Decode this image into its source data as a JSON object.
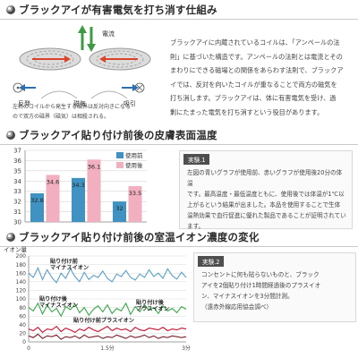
{
  "section1": {
    "title": "ブラックアイが有害電気を打ち消す仕組み",
    "diagram": {
      "current_label": "電流",
      "repel_label": "反発",
      "magnetism_label": "磁気",
      "attract_label": "吸引",
      "caption_line1": "左右のコイルから発生する磁界は反対向きになる",
      "caption_line2": "ので双方の磁界（磁気）は相殺される。"
    },
    "text_lines": [
      "ブラックアイに内蔵されているコイルは、「アンペールの法",
      "則」に基づいた構造です。アンペールの法則とは電流とその",
      "まわりにできる磁場との関係をあらわす法則で、ブラックア",
      "イでは、反対を向いたコイルが重なることで両方の磁気を",
      "打ち消します。ブラックアイは、体に有害電気を受け、過",
      "剰にたまった電気を打ち消すという役目があります。"
    ]
  },
  "section2": {
    "title": "ブラックアイ貼り付け前後の皮膚表面温度",
    "example_badge": "実験.1",
    "example_lines": [
      "左図の青いグラフが使用前、赤いグラフが使用後20分の体温",
      "です。最高温度・最低温度ともに、使用後では体温が1℃以",
      "上がるという結果が出ました。本品を使用することで生体",
      "温熱効果で血行促進に優れた製品であることが証明されてい",
      "ます。"
    ]
  },
  "section3": {
    "title": "ブラックアイ貼り付け前後の室温イオン濃度の変化",
    "example_badge": "実験.2",
    "example_lines": [
      "コンセントに何も貼らないものと、ブラック",
      "アイを2個貼り付け1時間経過後のプラスイオ",
      "ン、マイナスイオンを3分間計測。",
      "（遠赤外線応用協会調べ）"
    ]
  },
  "colors": {
    "before": "#3f92c2",
    "after": "#f2afc0",
    "plus_ion_line": "#c8102e",
    "minus_ion_after": "#3aa84a",
    "minus_ion_before": "#5aa0c8"
  },
  "chart_data": [
    {
      "type": "bar",
      "title": "",
      "categories": [
        "最高温度",
        "最低温度"
      ],
      "series": [
        {
          "name": "使用前",
          "values": [
            32.8,
            34.3
          ]
        },
        {
          "name": "使用後",
          "values": [
            34.6,
            36.1
          ]
        }
      ],
      "extra_bars": [
        {
          "name": "使用前",
          "value": 32
        },
        {
          "name": "使用後",
          "value": 33.5
        }
      ],
      "y_ticks": [
        30,
        31,
        32,
        33,
        34,
        35,
        36,
        37
      ],
      "ylim": [
        30,
        37
      ],
      "grid": true,
      "legend": "top-right"
    },
    {
      "type": "line",
      "y_axis_title": "イオン量",
      "y_ticks": [
        0,
        20,
        40,
        60,
        80,
        100,
        120,
        140,
        160,
        180,
        200
      ],
      "x_ticks": [
        "0",
        "1.5分",
        "3分"
      ],
      "ylim": [
        0,
        200
      ],
      "grid": true,
      "annotations": [
        {
          "text": "貼り付け前",
          "sub": "マイナスイオン"
        },
        {
          "text": "貼り付け後",
          "sub": "マイナスイオン"
        },
        {
          "text": "貼り付け前プラスイオン"
        },
        {
          "text": "貼り付け後",
          "sub": "プラスイオン"
        }
      ],
      "series": [
        {
          "values": [
            160,
            150,
            172,
            145,
            168,
            150,
            138,
            160,
            148,
            170,
            152,
            140,
            162,
            145,
            155,
            150,
            165,
            148,
            140,
            158,
            152,
            166,
            150,
            144,
            158,
            150,
            168,
            152,
            160,
            148,
            170,
            154,
            146,
            162,
            150
          ]
        },
        {
          "values": [
            80,
            72,
            90,
            65,
            85,
            70,
            78,
            60,
            82,
            75,
            88,
            68,
            80,
            62,
            76,
            84,
            70,
            86,
            66,
            78,
            72,
            90,
            64,
            82,
            70,
            86,
            74,
            80,
            66,
            84,
            72,
            78,
            68,
            82,
            76
          ]
        },
        {
          "values": [
            30,
            26,
            34,
            22,
            30,
            28,
            36,
            24,
            32,
            28,
            22,
            30,
            26,
            34,
            28,
            24,
            30,
            36,
            26,
            32,
            28,
            30,
            24,
            34,
            28,
            26,
            32,
            30,
            28,
            34,
            26,
            30,
            28,
            32,
            30
          ]
        },
        {
          "values": [
            14,
            10,
            18,
            8,
            14,
            12,
            16,
            6,
            12,
            10,
            14,
            8,
            16,
            10,
            12,
            14,
            8,
            12,
            10,
            16,
            12,
            8,
            14,
            10,
            12,
            16,
            10,
            14,
            8,
            12,
            10,
            14,
            12,
            10,
            12
          ]
        }
      ]
    }
  ]
}
